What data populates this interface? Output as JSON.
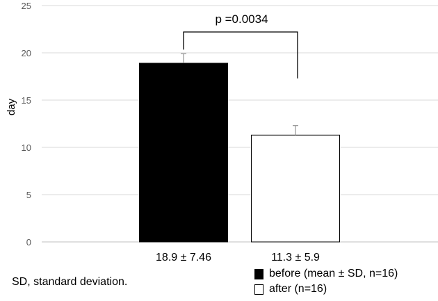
{
  "chart_data": {
    "type": "bar",
    "ylabel": "day",
    "ylim": [
      0,
      25
    ],
    "yticks": [
      0,
      5,
      10,
      15,
      20,
      25
    ],
    "grid": true,
    "categories": [
      "18.9 ± 7.46",
      "11.3 ± 5.9"
    ],
    "values": [
      18.9,
      11.3
    ],
    "error_bars": [
      1.0,
      1.0
    ],
    "colors": [
      "#000000",
      "#ffffff"
    ],
    "annotation": {
      "text": "p =0.0034",
      "between": [
        0,
        1
      ]
    },
    "legend": {
      "placement": "bottom-right",
      "entries": [
        {
          "label": "before (mean ± SD, n=16)",
          "color": "#000000"
        },
        {
          "label": "after (n=16)",
          "color": "#ffffff"
        }
      ]
    }
  },
  "footnote": "SD, standard deviation."
}
